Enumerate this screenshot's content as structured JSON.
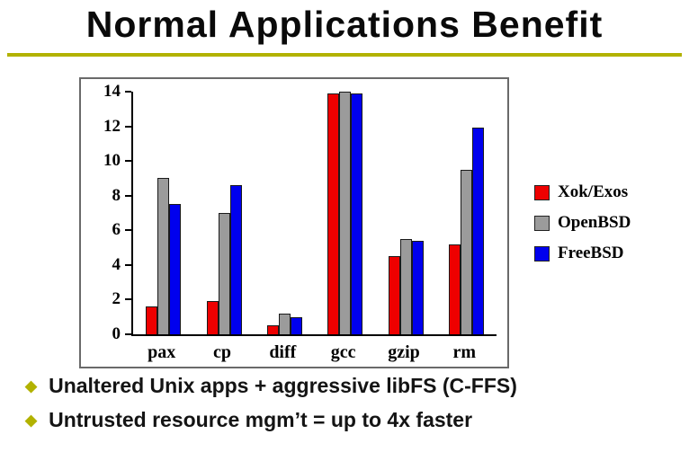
{
  "slide": {
    "title": "Normal Applications Benefit",
    "accent_color": "#b2b200",
    "bullets": [
      {
        "marker": "◆",
        "text": "Unaltered Unix apps + aggressive libFS (C-FFS)"
      },
      {
        "marker": "◆",
        "text": "Untrusted resource mgm’t = up to 4x faster"
      }
    ]
  },
  "chart_data": {
    "type": "bar",
    "title": "",
    "xlabel": "",
    "ylabel": "",
    "categories": [
      "pax",
      "cp",
      "diff",
      "gcc",
      "gzip",
      "rm"
    ],
    "series": [
      {
        "name": "Xok/Exos",
        "color": "#ee0000",
        "values": [
          1.6,
          1.9,
          0.5,
          13.9,
          4.5,
          5.2
        ]
      },
      {
        "name": "OpenBSD",
        "color": "#9b9b9b",
        "values": [
          9.0,
          7.0,
          1.2,
          14.0,
          5.5,
          9.5
        ]
      },
      {
        "name": "FreeBSD",
        "color": "#0000ee",
        "values": [
          7.5,
          8.6,
          1.0,
          13.9,
          5.4,
          11.9
        ]
      }
    ],
    "ylim": [
      0,
      14
    ],
    "yticks": [
      0,
      2,
      4,
      6,
      8,
      10,
      12,
      14
    ],
    "legend_position": "right",
    "grid": false
  }
}
